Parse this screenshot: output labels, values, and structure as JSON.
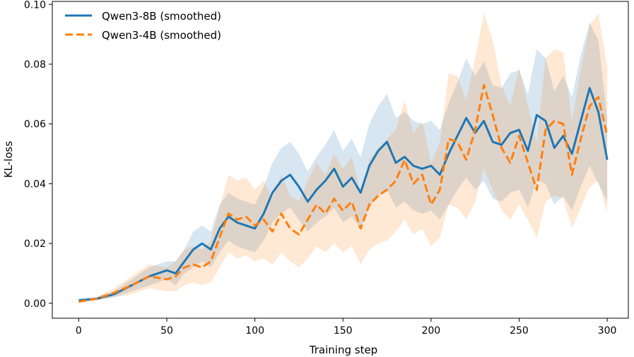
{
  "chart_data": {
    "type": "line",
    "title": "",
    "xlabel": "Training step",
    "ylabel": "KL-loss",
    "xlim": [
      -15,
      312
    ],
    "ylim": [
      -0.005,
      0.101
    ],
    "xticks": [
      0,
      50,
      100,
      150,
      200,
      250,
      300
    ],
    "xtick_labels": [
      "0",
      "50",
      "100",
      "150",
      "200",
      "250",
      "300"
    ],
    "yticks": [
      0.0,
      0.02,
      0.04,
      0.06,
      0.08,
      0.1
    ],
    "ytick_labels": [
      "0.00",
      "0.02",
      "0.04",
      "0.06",
      "0.08",
      "0.10"
    ],
    "grid": false,
    "legend_position": "top-left",
    "series": [
      {
        "name": "Qwen3-8B (smoothed)",
        "color": "#1f77b4",
        "line_style": "solid",
        "x": [
          0,
          10,
          20,
          30,
          40,
          50,
          55,
          60,
          65,
          70,
          75,
          80,
          85,
          90,
          95,
          100,
          105,
          110,
          115,
          120,
          125,
          130,
          135,
          140,
          145,
          150,
          155,
          160,
          165,
          170,
          175,
          180,
          185,
          190,
          195,
          200,
          205,
          210,
          215,
          220,
          225,
          230,
          235,
          240,
          245,
          250,
          255,
          260,
          265,
          270,
          275,
          280,
          285,
          290,
          295,
          300
        ],
        "values": [
          0.001,
          0.0015,
          0.003,
          0.006,
          0.009,
          0.011,
          0.01,
          0.014,
          0.018,
          0.02,
          0.018,
          0.025,
          0.029,
          0.027,
          0.026,
          0.025,
          0.03,
          0.037,
          0.041,
          0.043,
          0.039,
          0.034,
          0.038,
          0.041,
          0.045,
          0.039,
          0.042,
          0.037,
          0.046,
          0.051,
          0.054,
          0.047,
          0.049,
          0.046,
          0.045,
          0.046,
          0.043,
          0.05,
          0.056,
          0.062,
          0.057,
          0.061,
          0.054,
          0.053,
          0.057,
          0.058,
          0.051,
          0.063,
          0.061,
          0.052,
          0.056,
          0.05,
          0.061,
          0.072,
          0.064,
          0.048
        ],
        "band_lower": [
          0.0005,
          0.001,
          0.002,
          0.004,
          0.006,
          0.008,
          0.006,
          0.01,
          0.012,
          0.014,
          0.012,
          0.017,
          0.021,
          0.019,
          0.018,
          0.017,
          0.021,
          0.027,
          0.03,
          0.032,
          0.028,
          0.024,
          0.027,
          0.029,
          0.032,
          0.027,
          0.029,
          0.025,
          0.032,
          0.036,
          0.038,
          0.032,
          0.034,
          0.031,
          0.03,
          0.031,
          0.028,
          0.033,
          0.038,
          0.042,
          0.038,
          0.041,
          0.035,
          0.034,
          0.037,
          0.038,
          0.032,
          0.041,
          0.04,
          0.033,
          0.036,
          0.031,
          0.039,
          0.046,
          0.04,
          0.034
        ],
        "band_upper": [
          0.0015,
          0.002,
          0.004,
          0.008,
          0.012,
          0.014,
          0.014,
          0.018,
          0.024,
          0.026,
          0.024,
          0.033,
          0.037,
          0.035,
          0.034,
          0.033,
          0.039,
          0.047,
          0.052,
          0.054,
          0.05,
          0.044,
          0.049,
          0.053,
          0.058,
          0.051,
          0.055,
          0.049,
          0.06,
          0.066,
          0.07,
          0.062,
          0.064,
          0.061,
          0.06,
          0.061,
          0.058,
          0.067,
          0.074,
          0.082,
          0.076,
          0.081,
          0.073,
          0.072,
          0.077,
          0.078,
          0.07,
          0.085,
          0.082,
          0.071,
          0.076,
          0.069,
          0.083,
          0.094,
          0.088,
          0.062
        ]
      },
      {
        "name": "Qwen3-4B (smoothed)",
        "color": "#ff7f0e",
        "line_style": "dashed",
        "x": [
          0,
          10,
          20,
          30,
          40,
          50,
          55,
          60,
          65,
          70,
          75,
          80,
          85,
          90,
          95,
          100,
          105,
          110,
          115,
          120,
          125,
          130,
          135,
          140,
          145,
          150,
          155,
          160,
          165,
          170,
          175,
          180,
          185,
          190,
          195,
          200,
          205,
          210,
          215,
          220,
          225,
          230,
          235,
          240,
          245,
          250,
          255,
          260,
          265,
          270,
          275,
          280,
          285,
          290,
          295,
          300
        ],
        "values": [
          0.0005,
          0.0015,
          0.0035,
          0.006,
          0.009,
          0.008,
          0.009,
          0.012,
          0.013,
          0.012,
          0.014,
          0.022,
          0.03,
          0.028,
          0.029,
          0.026,
          0.028,
          0.024,
          0.03,
          0.025,
          0.023,
          0.028,
          0.033,
          0.03,
          0.035,
          0.031,
          0.034,
          0.025,
          0.033,
          0.036,
          0.038,
          0.041,
          0.048,
          0.04,
          0.043,
          0.033,
          0.038,
          0.055,
          0.054,
          0.048,
          0.058,
          0.073,
          0.063,
          0.052,
          0.047,
          0.056,
          0.047,
          0.038,
          0.058,
          0.061,
          0.06,
          0.043,
          0.055,
          0.066,
          0.069,
          0.056
        ],
        "band_lower": [
          0.0002,
          0.001,
          0.002,
          0.003,
          0.005,
          0.004,
          0.004,
          0.006,
          0.007,
          0.006,
          0.007,
          0.012,
          0.017,
          0.015,
          0.016,
          0.014,
          0.015,
          0.013,
          0.017,
          0.014,
          0.012,
          0.015,
          0.019,
          0.017,
          0.02,
          0.017,
          0.019,
          0.013,
          0.018,
          0.02,
          0.021,
          0.024,
          0.028,
          0.023,
          0.025,
          0.019,
          0.022,
          0.033,
          0.032,
          0.028,
          0.034,
          0.045,
          0.038,
          0.031,
          0.028,
          0.033,
          0.028,
          0.022,
          0.034,
          0.036,
          0.035,
          0.025,
          0.032,
          0.039,
          0.041,
          0.03
        ],
        "band_upper": [
          0.0009,
          0.002,
          0.005,
          0.009,
          0.013,
          0.012,
          0.014,
          0.018,
          0.019,
          0.018,
          0.021,
          0.032,
          0.043,
          0.041,
          0.042,
          0.038,
          0.041,
          0.035,
          0.043,
          0.036,
          0.034,
          0.041,
          0.047,
          0.043,
          0.05,
          0.045,
          0.049,
          0.037,
          0.048,
          0.052,
          0.055,
          0.058,
          0.068,
          0.057,
          0.061,
          0.047,
          0.054,
          0.077,
          0.076,
          0.068,
          0.082,
          0.097,
          0.088,
          0.073,
          0.066,
          0.079,
          0.066,
          0.054,
          0.082,
          0.085,
          0.084,
          0.061,
          0.078,
          0.093,
          0.097,
          0.079
        ]
      }
    ]
  }
}
